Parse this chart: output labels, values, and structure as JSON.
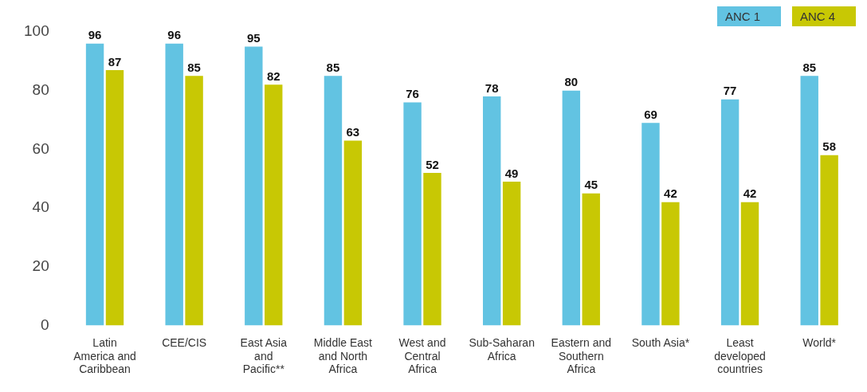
{
  "chart_data": {
    "type": "bar",
    "categories": [
      "Latin America and Caribbean",
      "CEE/CIS",
      "East Asia and Pacific**",
      "Middle East and North Africa",
      "West and Central Africa",
      "Sub-Saharan Africa",
      "Eastern and Southern Africa",
      "South Asia*",
      "Least developed countries",
      "World*"
    ],
    "series": [
      {
        "name": "ANC 1",
        "color": "#62c3e2",
        "values": [
          96,
          96,
          95,
          85,
          76,
          78,
          80,
          69,
          77,
          85
        ]
      },
      {
        "name": "ANC 4",
        "color": "#c8c804",
        "values": [
          87,
          85,
          82,
          63,
          52,
          49,
          45,
          42,
          42,
          58
        ]
      }
    ],
    "ylim": [
      0,
      100
    ],
    "yticks": [
      0,
      20,
      40,
      60,
      80,
      100
    ],
    "grid": false,
    "legend": "top right",
    "data_labels": true
  }
}
